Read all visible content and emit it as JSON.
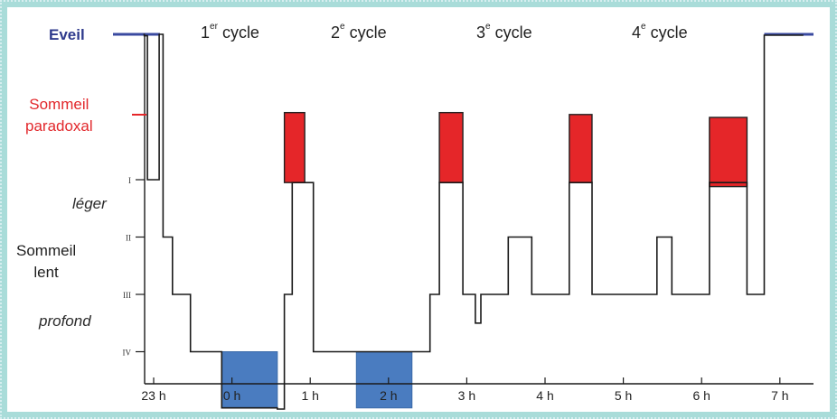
{
  "chart_data": {
    "type": "step-line",
    "title": "",
    "stages": {
      "eveil": "Eveil",
      "paradoxal": [
        "Sommeil",
        "paradoxal"
      ],
      "leger": "léger",
      "lent": [
        "Sommeil",
        "lent"
      ],
      "profond": "profond",
      "ticks": [
        "I",
        "II",
        "III",
        "IV"
      ]
    },
    "cycles": [
      {
        "num": "1",
        "sup": "er",
        "label": "cycle"
      },
      {
        "num": "2",
        "sup": "e",
        "label": "cycle"
      },
      {
        "num": "3",
        "sup": "e",
        "label": "cycle"
      },
      {
        "num": "4",
        "sup": "e",
        "label": "cycle"
      }
    ],
    "x_ticks": [
      {
        "value": 23,
        "label": "23 h"
      },
      {
        "value": 24,
        "label": "0 h"
      },
      {
        "value": 25,
        "label": "1 h"
      },
      {
        "value": 26,
        "label": "2 h"
      },
      {
        "value": 27,
        "label": "3 h"
      },
      {
        "value": 28,
        "label": "4 h"
      },
      {
        "value": 29,
        "label": "5 h"
      },
      {
        "value": 30,
        "label": "6 h"
      },
      {
        "value": 31,
        "label": "7 h"
      }
    ],
    "xlim": [
      22.92,
      31.3
    ],
    "hypnogram": [
      [
        22.87,
        0
      ],
      [
        22.88,
        0
      ],
      [
        22.88,
        0.08
      ],
      [
        22.92,
        0.08
      ],
      [
        22.92,
        1
      ],
      [
        23.07,
        1
      ],
      [
        23.07,
        0
      ],
      [
        23.12,
        0
      ],
      [
        23.12,
        2
      ],
      [
        23.24,
        2
      ],
      [
        23.24,
        3
      ],
      [
        23.47,
        3
      ],
      [
        23.47,
        4
      ],
      [
        23.87,
        4
      ],
      [
        23.87,
        4.98
      ],
      [
        24.58,
        4.98
      ],
      [
        24.58,
        5
      ],
      [
        24.67,
        5
      ],
      [
        24.67,
        3
      ],
      [
        24.77,
        3
      ],
      [
        24.77,
        1.05
      ],
      [
        25.04,
        1.05
      ],
      [
        25.04,
        4
      ],
      [
        26.53,
        4
      ],
      [
        26.53,
        3
      ],
      [
        26.65,
        3
      ],
      [
        26.65,
        1.05
      ],
      [
        26.95,
        1.05
      ],
      [
        26.95,
        3
      ],
      [
        27.11,
        3
      ],
      [
        27.11,
        3.5
      ],
      [
        27.18,
        3.5
      ],
      [
        27.18,
        3
      ],
      [
        27.53,
        3
      ],
      [
        27.53,
        2
      ],
      [
        27.83,
        2
      ],
      [
        27.83,
        3
      ],
      [
        28.31,
        3
      ],
      [
        28.31,
        1.05
      ],
      [
        28.6,
        1.05
      ],
      [
        28.6,
        3
      ],
      [
        29.43,
        3
      ],
      [
        29.43,
        2
      ],
      [
        29.62,
        2
      ],
      [
        29.62,
        3
      ],
      [
        30.1,
        3
      ],
      [
        30.1,
        1.05
      ],
      [
        30.58,
        1.05
      ],
      [
        30.58,
        3
      ],
      [
        30.8,
        3
      ],
      [
        30.8,
        0.05
      ],
      [
        31.3,
        0.05
      ]
    ],
    "eveil_levels": [
      {
        "from": 22.64,
        "to": 23.04,
        "level": 0
      },
      {
        "from": 30.8,
        "to": 31.3,
        "level": 0
      }
    ],
    "rem_blocks": [
      {
        "from": 24.67,
        "to": 24.93,
        "top": 0.82,
        "bottom": 1.05
      },
      {
        "from": 26.65,
        "to": 26.95,
        "top": 0.82,
        "bottom": 1.05
      },
      {
        "from": 28.31,
        "to": 28.6,
        "top": 0.84,
        "bottom": 1.05
      },
      {
        "from": 30.1,
        "to": 30.58,
        "top": 0.87,
        "bottom": 1.12
      }
    ],
    "deep_blocks": [
      {
        "from": 23.87,
        "to": 24.58,
        "top": 4,
        "bottom": 4.98
      },
      {
        "from": 25.59,
        "to": 26.3,
        "top": 4,
        "bottom": 4.98
      }
    ],
    "colors": {
      "eveil": "#3a4aa0",
      "rem": "#e52629",
      "deep": "#4a7cc0",
      "line": "#1a1a1a",
      "axis": "#1a1a1a"
    }
  }
}
